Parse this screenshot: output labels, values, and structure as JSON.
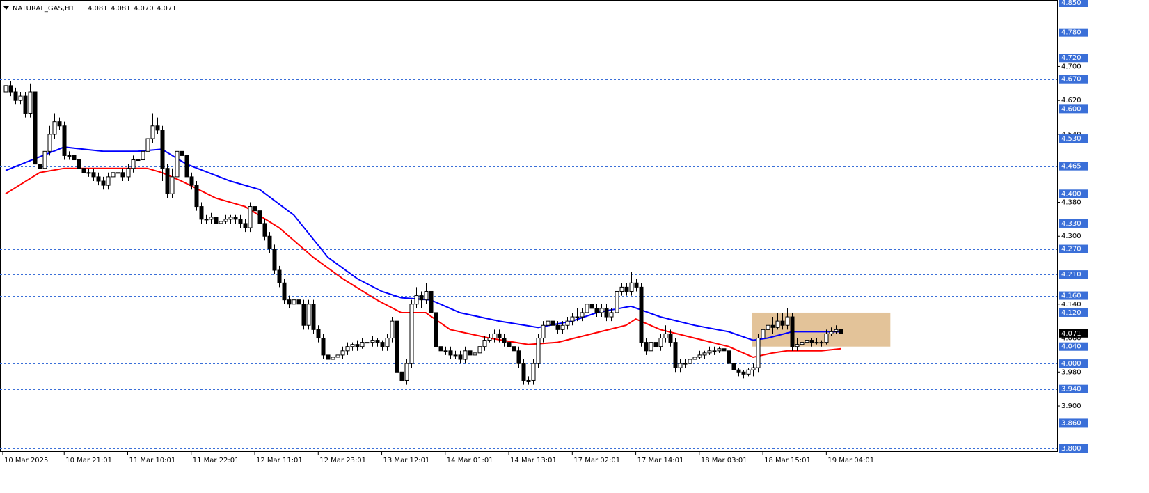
{
  "chart_data": {
    "type": "candlestick",
    "header": {
      "symbol": "NATURAL_GAS,H1",
      "ohlc": [
        "4.081",
        "4.081",
        "4.070",
        "4.071"
      ]
    },
    "ylim": [
      3.8,
      4.85
    ],
    "yticks": [
      {
        "value": 4.7,
        "label": "4.700"
      },
      {
        "value": 4.62,
        "label": "4.620"
      },
      {
        "value": 4.54,
        "label": "4.540"
      },
      {
        "value": 4.38,
        "label": "4.380"
      },
      {
        "value": 4.3,
        "label": "4.300"
      },
      {
        "value": 4.14,
        "label": "4.140"
      },
      {
        "value": 4.06,
        "label": "4.060"
      },
      {
        "value": 3.98,
        "label": "3.980"
      },
      {
        "value": 3.9,
        "label": "3.900"
      }
    ],
    "levels": [
      {
        "value": 4.85,
        "label": "4.850"
      },
      {
        "value": 4.78,
        "label": "4.780"
      },
      {
        "value": 4.72,
        "label": "4.720"
      },
      {
        "value": 4.67,
        "label": "4.670"
      },
      {
        "value": 4.6,
        "label": "4.600"
      },
      {
        "value": 4.53,
        "label": "4.530"
      },
      {
        "value": 4.465,
        "label": "4.465"
      },
      {
        "value": 4.4,
        "label": "4.400"
      },
      {
        "value": 4.33,
        "label": "4.330"
      },
      {
        "value": 4.27,
        "label": "4.270"
      },
      {
        "value": 4.21,
        "label": "4.210"
      },
      {
        "value": 4.16,
        "label": "4.160"
      },
      {
        "value": 4.12,
        "label": "4.120"
      },
      {
        "value": 4.04,
        "label": "4.040"
      },
      {
        "value": 4.0,
        "label": "4.000"
      },
      {
        "value": 3.94,
        "label": "3.940"
      },
      {
        "value": 3.86,
        "label": "3.860"
      },
      {
        "value": 3.8,
        "label": "3.800"
      }
    ],
    "level_color": "#3a6fd8",
    "current_price": {
      "value": 4.071,
      "label": "4.071"
    },
    "xticks": [
      {
        "value": 0,
        "label": "10 Mar 2025"
      },
      {
        "value": 12,
        "label": "10 Mar 21:01"
      },
      {
        "value": 25,
        "label": "11 Mar 10:01"
      },
      {
        "value": 38,
        "label": "11 Mar 22:01"
      },
      {
        "value": 51,
        "label": "12 Mar 11:01"
      },
      {
        "value": 64,
        "label": "12 Mar 23:01"
      },
      {
        "value": 77,
        "label": "13 Mar 12:01"
      },
      {
        "value": 90,
        "label": "14 Mar 01:01"
      },
      {
        "value": 103,
        "label": "14 Mar 13:01"
      },
      {
        "value": 116,
        "label": "17 Mar 02:01"
      },
      {
        "value": 129,
        "label": "17 Mar 14:01"
      },
      {
        "value": 142,
        "label": "18 Mar 03:01"
      },
      {
        "value": 155,
        "label": "18 Mar 15:01"
      },
      {
        "value": 168,
        "label": "19 Mar 04:01"
      }
    ],
    "zone": {
      "x": [
        152.8,
        181.1
      ],
      "ylim": [
        4.04,
        4.12
      ],
      "color": "#deb887"
    },
    "overlays": [
      {
        "color": "#0000ff",
        "x": [
          0,
          12,
          20,
          27,
          32,
          37,
          46,
          52,
          59,
          66,
          72,
          77,
          81,
          87,
          93,
          101,
          109,
          116,
          121,
          128,
          134,
          141,
          148,
          153,
          156,
          161,
          171
        ],
        "values": [
          4.455,
          4.51,
          4.5,
          4.5,
          4.505,
          4.47,
          4.43,
          4.41,
          4.35,
          4.25,
          4.2,
          4.17,
          4.155,
          4.15,
          4.12,
          4.1,
          4.085,
          4.1,
          4.12,
          4.135,
          4.11,
          4.09,
          4.075,
          4.055,
          4.06,
          4.075,
          4.075
        ]
      },
      {
        "color": "#ff0000",
        "x": [
          0,
          7,
          12,
          29,
          32,
          36,
          43,
          49,
          56,
          63,
          69,
          76,
          81,
          86,
          91,
          99,
          107,
          113,
          120,
          127,
          129,
          134,
          141,
          148,
          153,
          157,
          160,
          167,
          171
        ],
        "values": [
          4.4,
          4.45,
          4.46,
          4.46,
          4.45,
          4.43,
          4.39,
          4.37,
          4.32,
          4.25,
          4.2,
          4.15,
          4.12,
          4.12,
          4.08,
          4.06,
          4.045,
          4.05,
          4.07,
          4.09,
          4.105,
          4.08,
          4.06,
          4.04,
          4.015,
          4.025,
          4.03,
          4.03,
          4.035
        ]
      }
    ],
    "candles": [
      [
        4.64,
        4.68,
        4.635,
        4.655
      ],
      [
        4.655,
        4.665,
        4.63,
        4.64
      ],
      [
        4.64,
        4.65,
        4.61,
        4.62
      ],
      [
        4.62,
        4.64,
        4.61,
        4.63
      ],
      [
        4.63,
        4.64,
        4.58,
        4.59
      ],
      [
        4.59,
        4.66,
        4.58,
        4.64
      ],
      [
        4.64,
        4.65,
        4.45,
        4.47
      ],
      [
        4.47,
        4.48,
        4.45,
        4.46
      ],
      [
        4.46,
        4.52,
        4.45,
        4.5
      ],
      [
        4.5,
        4.56,
        4.49,
        4.54
      ],
      [
        4.54,
        4.59,
        4.53,
        4.57
      ],
      [
        4.57,
        4.58,
        4.55,
        4.56
      ],
      [
        4.56,
        4.57,
        4.48,
        4.49
      ],
      [
        4.49,
        4.5,
        4.48,
        4.49
      ],
      [
        4.49,
        4.5,
        4.47,
        4.48
      ],
      [
        4.48,
        4.49,
        4.45,
        4.46
      ],
      [
        4.46,
        4.47,
        4.44,
        4.45
      ],
      [
        4.45,
        4.46,
        4.44,
        4.45
      ],
      [
        4.45,
        4.46,
        4.43,
        4.44
      ],
      [
        4.44,
        4.45,
        4.42,
        4.43
      ],
      [
        4.43,
        4.44,
        4.41,
        4.42
      ],
      [
        4.42,
        4.45,
        4.41,
        4.44
      ],
      [
        4.44,
        4.46,
        4.43,
        4.45
      ],
      [
        4.45,
        4.47,
        4.42,
        4.45
      ],
      [
        4.45,
        4.46,
        4.43,
        4.44
      ],
      [
        4.44,
        4.47,
        4.43,
        4.46
      ],
      [
        4.46,
        4.49,
        4.45,
        4.48
      ],
      [
        4.48,
        4.49,
        4.46,
        4.48
      ],
      [
        4.48,
        4.52,
        4.47,
        4.5
      ],
      [
        4.5,
        4.55,
        4.49,
        4.53
      ],
      [
        4.53,
        4.59,
        4.52,
        4.56
      ],
      [
        4.56,
        4.58,
        4.54,
        4.55
      ],
      [
        4.55,
        4.56,
        4.43,
        4.46
      ],
      [
        4.46,
        4.47,
        4.39,
        4.4
      ],
      [
        4.4,
        4.46,
        4.39,
        4.44
      ],
      [
        4.44,
        4.51,
        4.43,
        4.5
      ],
      [
        4.5,
        4.51,
        4.47,
        4.49
      ],
      [
        4.49,
        4.5,
        4.43,
        4.44
      ],
      [
        4.44,
        4.45,
        4.41,
        4.42
      ],
      [
        4.42,
        4.43,
        4.36,
        4.37
      ],
      [
        4.37,
        4.38,
        4.33,
        4.34
      ],
      [
        4.34,
        4.35,
        4.33,
        4.34
      ],
      [
        4.34,
        4.355,
        4.33,
        4.345
      ],
      [
        4.345,
        4.35,
        4.32,
        4.33
      ],
      [
        4.33,
        4.34,
        4.32,
        4.335
      ],
      [
        4.335,
        4.35,
        4.33,
        4.34
      ],
      [
        4.34,
        4.35,
        4.33,
        4.345
      ],
      [
        4.345,
        4.35,
        4.33,
        4.34
      ],
      [
        4.34,
        4.35,
        4.32,
        4.33
      ],
      [
        4.33,
        4.34,
        4.31,
        4.32
      ],
      [
        4.32,
        4.38,
        4.31,
        4.37
      ],
      [
        4.37,
        4.38,
        4.35,
        4.36
      ],
      [
        4.36,
        4.37,
        4.32,
        4.33
      ],
      [
        4.33,
        4.34,
        4.29,
        4.3
      ],
      [
        4.3,
        4.31,
        4.26,
        4.27
      ],
      [
        4.27,
        4.28,
        4.21,
        4.22
      ],
      [
        4.22,
        4.23,
        4.18,
        4.19
      ],
      [
        4.19,
        4.2,
        4.14,
        4.15
      ],
      [
        4.15,
        4.16,
        4.13,
        4.14
      ],
      [
        4.14,
        4.16,
        4.13,
        4.15
      ],
      [
        4.15,
        4.16,
        4.13,
        4.14
      ],
      [
        4.14,
        4.15,
        4.08,
        4.09
      ],
      [
        4.09,
        4.15,
        4.08,
        4.14
      ],
      [
        4.14,
        4.15,
        4.07,
        4.08
      ],
      [
        4.08,
        4.09,
        4.05,
        4.06
      ],
      [
        4.06,
        4.07,
        4.01,
        4.02
      ],
      [
        4.02,
        4.03,
        4.0,
        4.01
      ],
      [
        4.01,
        4.025,
        4.005,
        4.015
      ],
      [
        4.015,
        4.03,
        4.01,
        4.02
      ],
      [
        4.02,
        4.04,
        4.01,
        4.03
      ],
      [
        4.03,
        4.05,
        4.02,
        4.04
      ],
      [
        4.04,
        4.05,
        4.03,
        4.045
      ],
      [
        4.045,
        4.055,
        4.03,
        4.04
      ],
      [
        4.04,
        4.06,
        4.035,
        4.05
      ],
      [
        4.05,
        4.06,
        4.04,
        4.05
      ],
      [
        4.05,
        4.065,
        4.04,
        4.055
      ],
      [
        4.055,
        4.06,
        4.04,
        4.05
      ],
      [
        4.05,
        4.055,
        4.03,
        4.04
      ],
      [
        4.04,
        4.07,
        4.03,
        4.06
      ],
      [
        4.06,
        4.11,
        4.05,
        4.1
      ],
      [
        4.1,
        4.11,
        3.97,
        3.98
      ],
      [
        3.98,
        3.99,
        3.94,
        3.96
      ],
      [
        3.96,
        4.01,
        3.95,
        4.0
      ],
      [
        4.0,
        4.15,
        3.99,
        4.14
      ],
      [
        4.14,
        4.18,
        4.13,
        4.16
      ],
      [
        4.16,
        4.17,
        4.13,
        4.15
      ],
      [
        4.15,
        4.19,
        4.14,
        4.17
      ],
      [
        4.17,
        4.18,
        4.11,
        4.12
      ],
      [
        4.12,
        4.13,
        4.03,
        4.04
      ],
      [
        4.04,
        4.05,
        4.02,
        4.03
      ],
      [
        4.03,
        4.04,
        4.02,
        4.03
      ],
      [
        4.03,
        4.04,
        4.01,
        4.02
      ],
      [
        4.02,
        4.03,
        4.01,
        4.02
      ],
      [
        4.02,
        4.03,
        4.0,
        4.01
      ],
      [
        4.01,
        4.04,
        4.0,
        4.03
      ],
      [
        4.03,
        4.04,
        4.01,
        4.02
      ],
      [
        4.02,
        4.035,
        4.01,
        4.025
      ],
      [
        4.025,
        4.05,
        4.02,
        4.04
      ],
      [
        4.04,
        4.065,
        4.03,
        4.055
      ],
      [
        4.055,
        4.07,
        4.05,
        4.06
      ],
      [
        4.06,
        4.08,
        4.05,
        4.07
      ],
      [
        4.07,
        4.08,
        4.05,
        4.06
      ],
      [
        4.06,
        4.07,
        4.04,
        4.05
      ],
      [
        4.05,
        4.06,
        4.03,
        4.04
      ],
      [
        4.04,
        4.05,
        4.02,
        4.03
      ],
      [
        4.03,
        4.04,
        3.99,
        4.0
      ],
      [
        4.0,
        4.01,
        3.95,
        3.96
      ],
      [
        3.96,
        3.97,
        3.95,
        3.96
      ],
      [
        3.96,
        4.01,
        3.95,
        4.0
      ],
      [
        4.0,
        4.07,
        3.99,
        4.06
      ],
      [
        4.06,
        4.1,
        4.05,
        4.09
      ],
      [
        4.09,
        4.13,
        4.08,
        4.1
      ],
      [
        4.1,
        4.11,
        4.08,
        4.09
      ],
      [
        4.09,
        4.1,
        4.07,
        4.08
      ],
      [
        4.08,
        4.1,
        4.07,
        4.09
      ],
      [
        4.09,
        4.11,
        4.08,
        4.1
      ],
      [
        4.1,
        4.12,
        4.09,
        4.11
      ],
      [
        4.11,
        4.13,
        4.1,
        4.11
      ],
      [
        4.11,
        4.13,
        4.1,
        4.12
      ],
      [
        4.12,
        4.17,
        4.11,
        4.14
      ],
      [
        4.14,
        4.15,
        4.12,
        4.13
      ],
      [
        4.13,
        4.14,
        4.11,
        4.12
      ],
      [
        4.12,
        4.14,
        4.11,
        4.13
      ],
      [
        4.13,
        4.14,
        4.1,
        4.11
      ],
      [
        4.11,
        4.13,
        4.1,
        4.12
      ],
      [
        4.12,
        4.18,
        4.11,
        4.17
      ],
      [
        4.17,
        4.19,
        4.16,
        4.18
      ],
      [
        4.18,
        4.19,
        4.16,
        4.17
      ],
      [
        4.17,
        4.215,
        4.16,
        4.19
      ],
      [
        4.19,
        4.2,
        4.17,
        4.18
      ],
      [
        4.18,
        4.19,
        4.04,
        4.05
      ],
      [
        4.05,
        4.06,
        4.02,
        4.03
      ],
      [
        4.03,
        4.06,
        4.02,
        4.05
      ],
      [
        4.05,
        4.06,
        4.03,
        4.04
      ],
      [
        4.04,
        4.07,
        4.03,
        4.06
      ],
      [
        4.06,
        4.09,
        4.05,
        4.07
      ],
      [
        4.07,
        4.08,
        4.04,
        4.05
      ],
      [
        4.05,
        4.06,
        3.98,
        3.99
      ],
      [
        3.99,
        4.01,
        3.98,
        4.0
      ],
      [
        4.0,
        4.01,
        3.99,
        4.0
      ],
      [
        4.0,
        4.02,
        3.99,
        4.01
      ],
      [
        4.01,
        4.02,
        4.0,
        4.015
      ],
      [
        4.015,
        4.03,
        4.01,
        4.02
      ],
      [
        4.02,
        4.03,
        4.01,
        4.025
      ],
      [
        4.025,
        4.04,
        4.02,
        4.03
      ],
      [
        4.03,
        4.04,
        4.02,
        4.03
      ],
      [
        4.03,
        4.04,
        4.025,
        4.035
      ],
      [
        4.035,
        4.04,
        4.02,
        4.03
      ],
      [
        4.03,
        4.035,
        3.99,
        4.0
      ],
      [
        4.0,
        4.01,
        3.98,
        3.985
      ],
      [
        3.985,
        3.99,
        3.97,
        3.98
      ],
      [
        3.98,
        3.985,
        3.965,
        3.975
      ],
      [
        3.975,
        3.99,
        3.97,
        3.985
      ],
      [
        3.985,
        4.0,
        3.97,
        3.99
      ],
      [
        3.99,
        4.07,
        3.98,
        4.06
      ],
      [
        4.06,
        4.11,
        4.05,
        4.08
      ],
      [
        4.08,
        4.12,
        4.07,
        4.09
      ],
      [
        4.09,
        4.11,
        4.07,
        4.085
      ],
      [
        4.085,
        4.12,
        4.08,
        4.1
      ],
      [
        4.1,
        4.12,
        4.08,
        4.09
      ],
      [
        4.09,
        4.13,
        4.08,
        4.11
      ],
      [
        4.11,
        4.12,
        4.03,
        4.04
      ],
      [
        4.04,
        4.06,
        4.03,
        4.045
      ],
      [
        4.045,
        4.06,
        4.04,
        4.05
      ],
      [
        4.05,
        4.06,
        4.04,
        4.055
      ],
      [
        4.055,
        4.06,
        4.04,
        4.05
      ],
      [
        4.05,
        4.06,
        4.045,
        4.05
      ],
      [
        4.05,
        4.055,
        4.04,
        4.05
      ],
      [
        4.05,
        4.08,
        4.045,
        4.07
      ],
      [
        4.07,
        4.085,
        4.065,
        4.075
      ],
      [
        4.075,
        4.09,
        4.07,
        4.08
      ],
      [
        4.081,
        4.081,
        4.07,
        4.071
      ]
    ]
  }
}
